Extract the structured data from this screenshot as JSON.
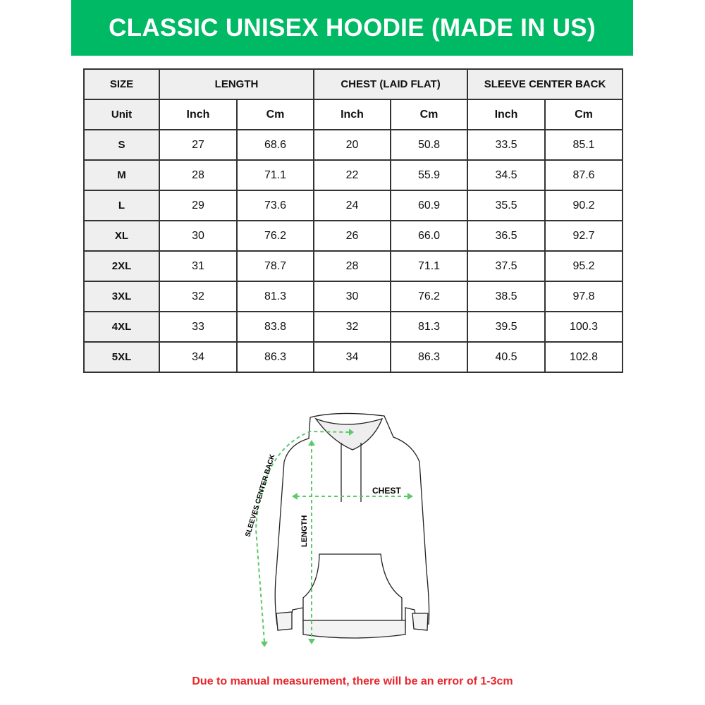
{
  "title": "CLASSIC UNISEX HOODIE (MADE IN US)",
  "table": {
    "header": [
      "SIZE",
      "LENGTH",
      "CHEST (LAID FLAT)",
      "SLEEVE CENTER BACK"
    ],
    "units": [
      "Unit",
      "Inch",
      "Cm",
      "Inch",
      "Cm",
      "Inch",
      "Cm"
    ],
    "rows": [
      [
        "S",
        "27",
        "68.6",
        "20",
        "50.8",
        "33.5",
        "85.1"
      ],
      [
        "M",
        "28",
        "71.1",
        "22",
        "55.9",
        "34.5",
        "87.6"
      ],
      [
        "L",
        "29",
        "73.6",
        "24",
        "60.9",
        "35.5",
        "90.2"
      ],
      [
        "XL",
        "30",
        "76.2",
        "26",
        "66.0",
        "36.5",
        "92.7"
      ],
      [
        "2XL",
        "31",
        "78.7",
        "28",
        "71.1",
        "37.5",
        "95.2"
      ],
      [
        "3XL",
        "32",
        "81.3",
        "30",
        "76.2",
        "38.5",
        "97.8"
      ],
      [
        "4XL",
        "33",
        "83.8",
        "32",
        "81.3",
        "39.5",
        "100.3"
      ],
      [
        "5XL",
        "34",
        "86.3",
        "34",
        "86.3",
        "40.5",
        "102.8"
      ]
    ]
  },
  "diagram": {
    "chest_label": "CHEST",
    "length_label": "LENGTH",
    "sleeve_label": "SLEEVES CENTER BACK"
  },
  "note": "Due to manual measurement, there will be an error of 1-3cm",
  "colors": {
    "brand": "#00b964",
    "note": "#e8262b",
    "measure": "#5cc96a"
  }
}
